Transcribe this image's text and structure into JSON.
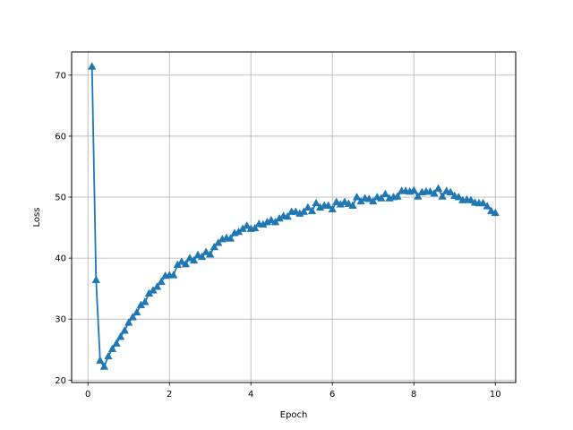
{
  "chart_data": {
    "type": "line",
    "xlabel": "Epoch",
    "ylabel": "Loss",
    "xlim": [
      -0.4,
      10.5
    ],
    "ylim": [
      19.6,
      73.8
    ],
    "xticks": [
      0,
      2,
      4,
      6,
      8,
      10
    ],
    "yticks": [
      20,
      30,
      40,
      50,
      60,
      70
    ],
    "grid": true,
    "marker": "triangle-up",
    "colors": {
      "line": "#1f77b4",
      "grid": "#b0b0b0",
      "axes": "#000000"
    },
    "series": [
      {
        "x": [
          0.1,
          0.2,
          0.3,
          0.4,
          0.5,
          0.6,
          0.7,
          0.8,
          0.9,
          1.0,
          1.1,
          1.2,
          1.3,
          1.4,
          1.5,
          1.6,
          1.7,
          1.8,
          1.9,
          2.0,
          2.1,
          2.2,
          2.3,
          2.4,
          2.5,
          2.6,
          2.7,
          2.8,
          2.9,
          3.0,
          3.1,
          3.2,
          3.3,
          3.4,
          3.5,
          3.6,
          3.7,
          3.8,
          3.9,
          4.0,
          4.1,
          4.2,
          4.3,
          4.4,
          4.5,
          4.6,
          4.7,
          4.8,
          4.9,
          5.0,
          5.1,
          5.2,
          5.3,
          5.4,
          5.5,
          5.6,
          5.7,
          5.8,
          5.9,
          6.0,
          6.1,
          6.2,
          6.3,
          6.4,
          6.5,
          6.6,
          6.7,
          6.8,
          6.9,
          7.0,
          7.1,
          7.2,
          7.3,
          7.4,
          7.5,
          7.6,
          7.7,
          7.8,
          7.9,
          8.0,
          8.1,
          8.2,
          8.3,
          8.4,
          8.5,
          8.6,
          8.7,
          8.8,
          8.9,
          9.0,
          9.1,
          9.2,
          9.3,
          9.4,
          9.5,
          9.6,
          9.7,
          9.8,
          9.9,
          10.0
        ],
        "values": [
          71.4,
          36.4,
          23.2,
          22.2,
          23.9,
          25.1,
          26.0,
          27.1,
          28.1,
          29.4,
          30.3,
          31.1,
          32.3,
          32.8,
          34.2,
          34.7,
          35.3,
          36.1,
          37.1,
          37.2,
          37.2,
          38.9,
          39.4,
          39.0,
          40.0,
          39.6,
          40.5,
          40.2,
          41.0,
          40.6,
          41.8,
          42.5,
          43.1,
          43.3,
          43.2,
          44.1,
          44.3,
          44.8,
          45.3,
          44.8,
          44.9,
          45.6,
          45.5,
          45.9,
          46.2,
          45.9,
          46.5,
          46.9,
          46.8,
          47.6,
          47.6,
          47.3,
          47.6,
          48.3,
          47.7,
          49.0,
          48.3,
          48.6,
          48.6,
          48.0,
          49.2,
          48.8,
          49.2,
          48.9,
          48.6,
          50.0,
          49.3,
          49.8,
          49.7,
          49.3,
          50.0,
          49.8,
          50.5,
          49.8,
          50.0,
          50.1,
          51.0,
          51.0,
          50.9,
          51.1,
          50.1,
          50.8,
          50.9,
          50.9,
          50.6,
          51.4,
          50.1,
          51.0,
          50.8,
          50.2,
          50.0,
          49.5,
          49.6,
          49.5,
          49.1,
          49.0,
          49.0,
          48.5,
          47.7,
          47.4
        ]
      }
    ]
  }
}
